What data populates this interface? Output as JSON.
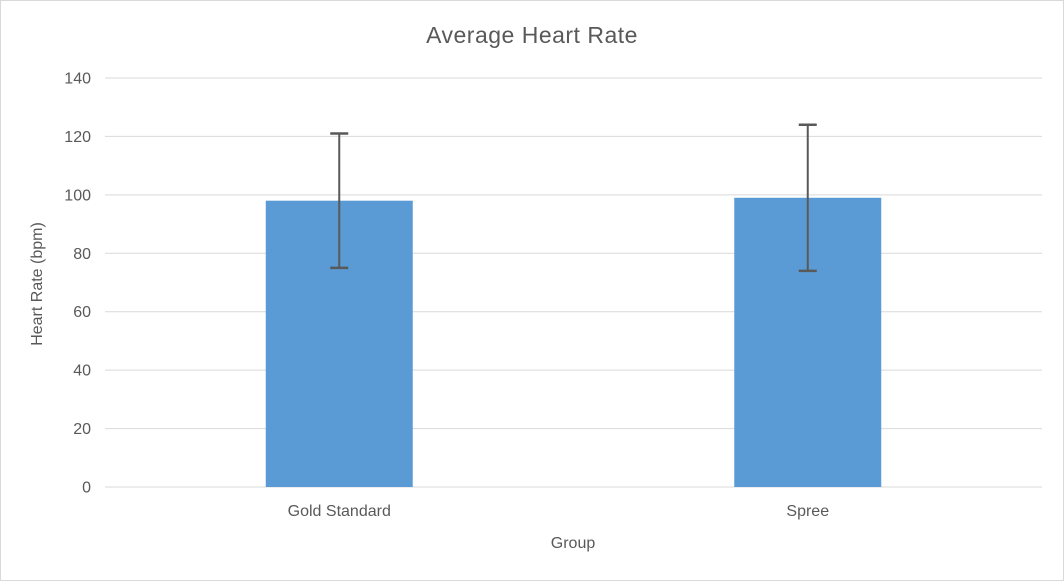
{
  "colors": {
    "background": "#FFFFFF",
    "frame_border": "#D9D9D9",
    "gridline": "#D9D9D9",
    "text": "#595959",
    "bar": "#5B9BD5",
    "error_bar": "#595959"
  },
  "chart_data": {
    "type": "bar",
    "title": "Average Heart Rate",
    "xlabel": "Group",
    "ylabel": "Heart Rate (bpm)",
    "categories": [
      "Gold Standard",
      "Spree"
    ],
    "values": [
      98,
      99
    ],
    "error_bars": [
      {
        "low": 75,
        "high": 121
      },
      {
        "low": 74,
        "high": 124
      }
    ],
    "ylim": [
      0,
      140
    ],
    "yticks": [
      0,
      20,
      40,
      60,
      80,
      100,
      120,
      140
    ],
    "grid": "horizontal",
    "legend": "none"
  }
}
